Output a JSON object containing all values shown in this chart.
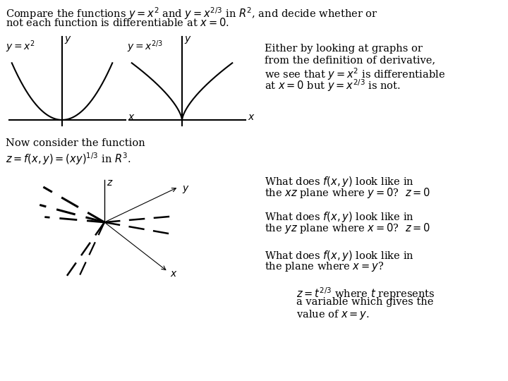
{
  "bg_color": "#ffffff",
  "title_line1": "Compare the functions $y=x^2$ and $y=x^{2/3}$ in $R^2$, and decide whether or",
  "title_line2": "not each function is differentiable at $x=0$.",
  "graph1_label": "$y=x^2$",
  "graph2_label": "$y=x^{2/3}$",
  "right_text_line1": "Either by looking at graphs or",
  "right_text_line2": "from the definition of derivative,",
  "right_text_line3": "we see that $y=x^2$ is differentiable",
  "right_text_line4": "at $x=0$ but $y=x^{2/3}$ is not.",
  "now_consider_line1": "Now consider the function",
  "now_consider_line2": "$z=f(x,y)=(xy)^{1/3}$ in $R^3$.",
  "q1_line1": "What does $f(x,y)$ look like in",
  "q1_line2": "the $xz$ plane where $y=0$?  $z=0$",
  "q2_line1": "What does $f(x,y)$ look like in",
  "q2_line2": "the $yz$ plane where $x=0$?  $z=0$",
  "q3_line1": "What does $f(x,y)$ look like in",
  "q3_line2": "the plane where $x=y$?",
  "q4_line1": "$z=t^{2/3}$ where $t$ represents",
  "q4_line2": "a variable which gives the",
  "q4_line3": "value of $x=y$.",
  "fontsize_title": 10.5,
  "fontsize_body": 10.5,
  "fontsize_graph_label": 10,
  "fontsize_axis_label": 10
}
